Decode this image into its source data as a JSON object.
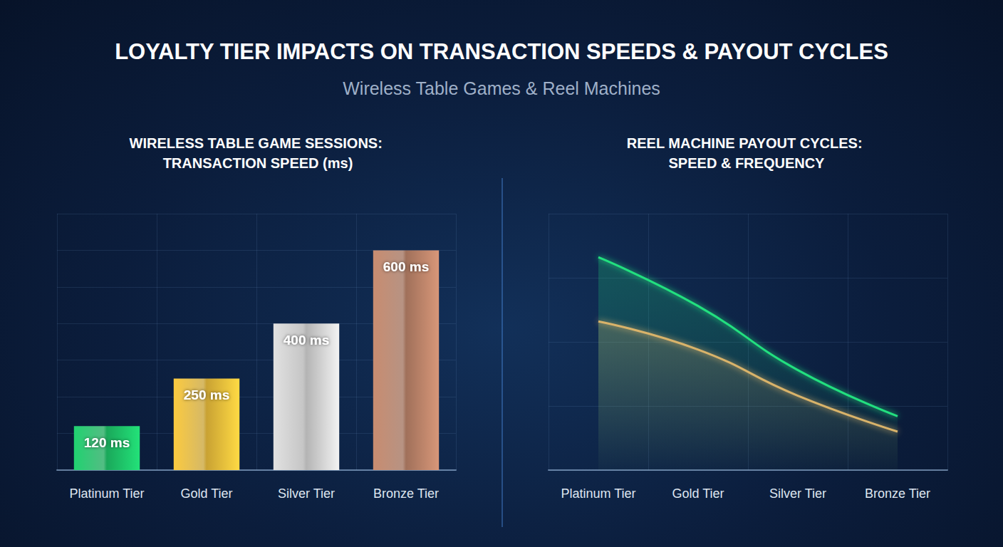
{
  "title": "LOYALTY TIER IMPACTS ON TRANSACTION SPEEDS & PAYOUT CYCLES",
  "subtitle": "Wireless Table Games & Reel Machines",
  "chart_data": [
    {
      "type": "bar",
      "title": "WIRELESS TABLE GAME SESSIONS: TRANSACTION SPEED (ms)",
      "categories": [
        "Platinum Tier",
        "Gold Tier",
        "Silver Tier",
        "Bronze Tier"
      ],
      "values": [
        120,
        250,
        400,
        600
      ],
      "value_labels": [
        "120 ms",
        "250 ms",
        "400 ms",
        "600 ms"
      ],
      "colors": [
        "#1aa85a",
        "#c9a233",
        "#b4b4b4",
        "#a0705a"
      ],
      "ylim": [
        0,
        700
      ],
      "yticks": [
        0,
        100,
        200,
        300,
        400,
        500,
        600,
        700
      ],
      "grid": true,
      "data_labels": true,
      "tick_labels": "x"
    },
    {
      "type": "line",
      "title": "REEL MACHINE PAYOUT CYCLES: SPEED & FREQUENCY",
      "categories": [
        "Platinum Tier",
        "Gold Tier",
        "Silver Tier",
        "Bronze Tier"
      ],
      "series": [
        {
          "color": "#22e07f",
          "values": [
            83,
            64,
            39,
            21
          ]
        },
        {
          "color": "#d9b36a",
          "values": [
            58,
            47,
            29,
            15
          ]
        }
      ],
      "ylim": [
        0,
        100
      ],
      "yticks": [
        0,
        25,
        50,
        75,
        100
      ],
      "grid": true,
      "tick_labels": "x",
      "line_style": "smooth"
    }
  ]
}
